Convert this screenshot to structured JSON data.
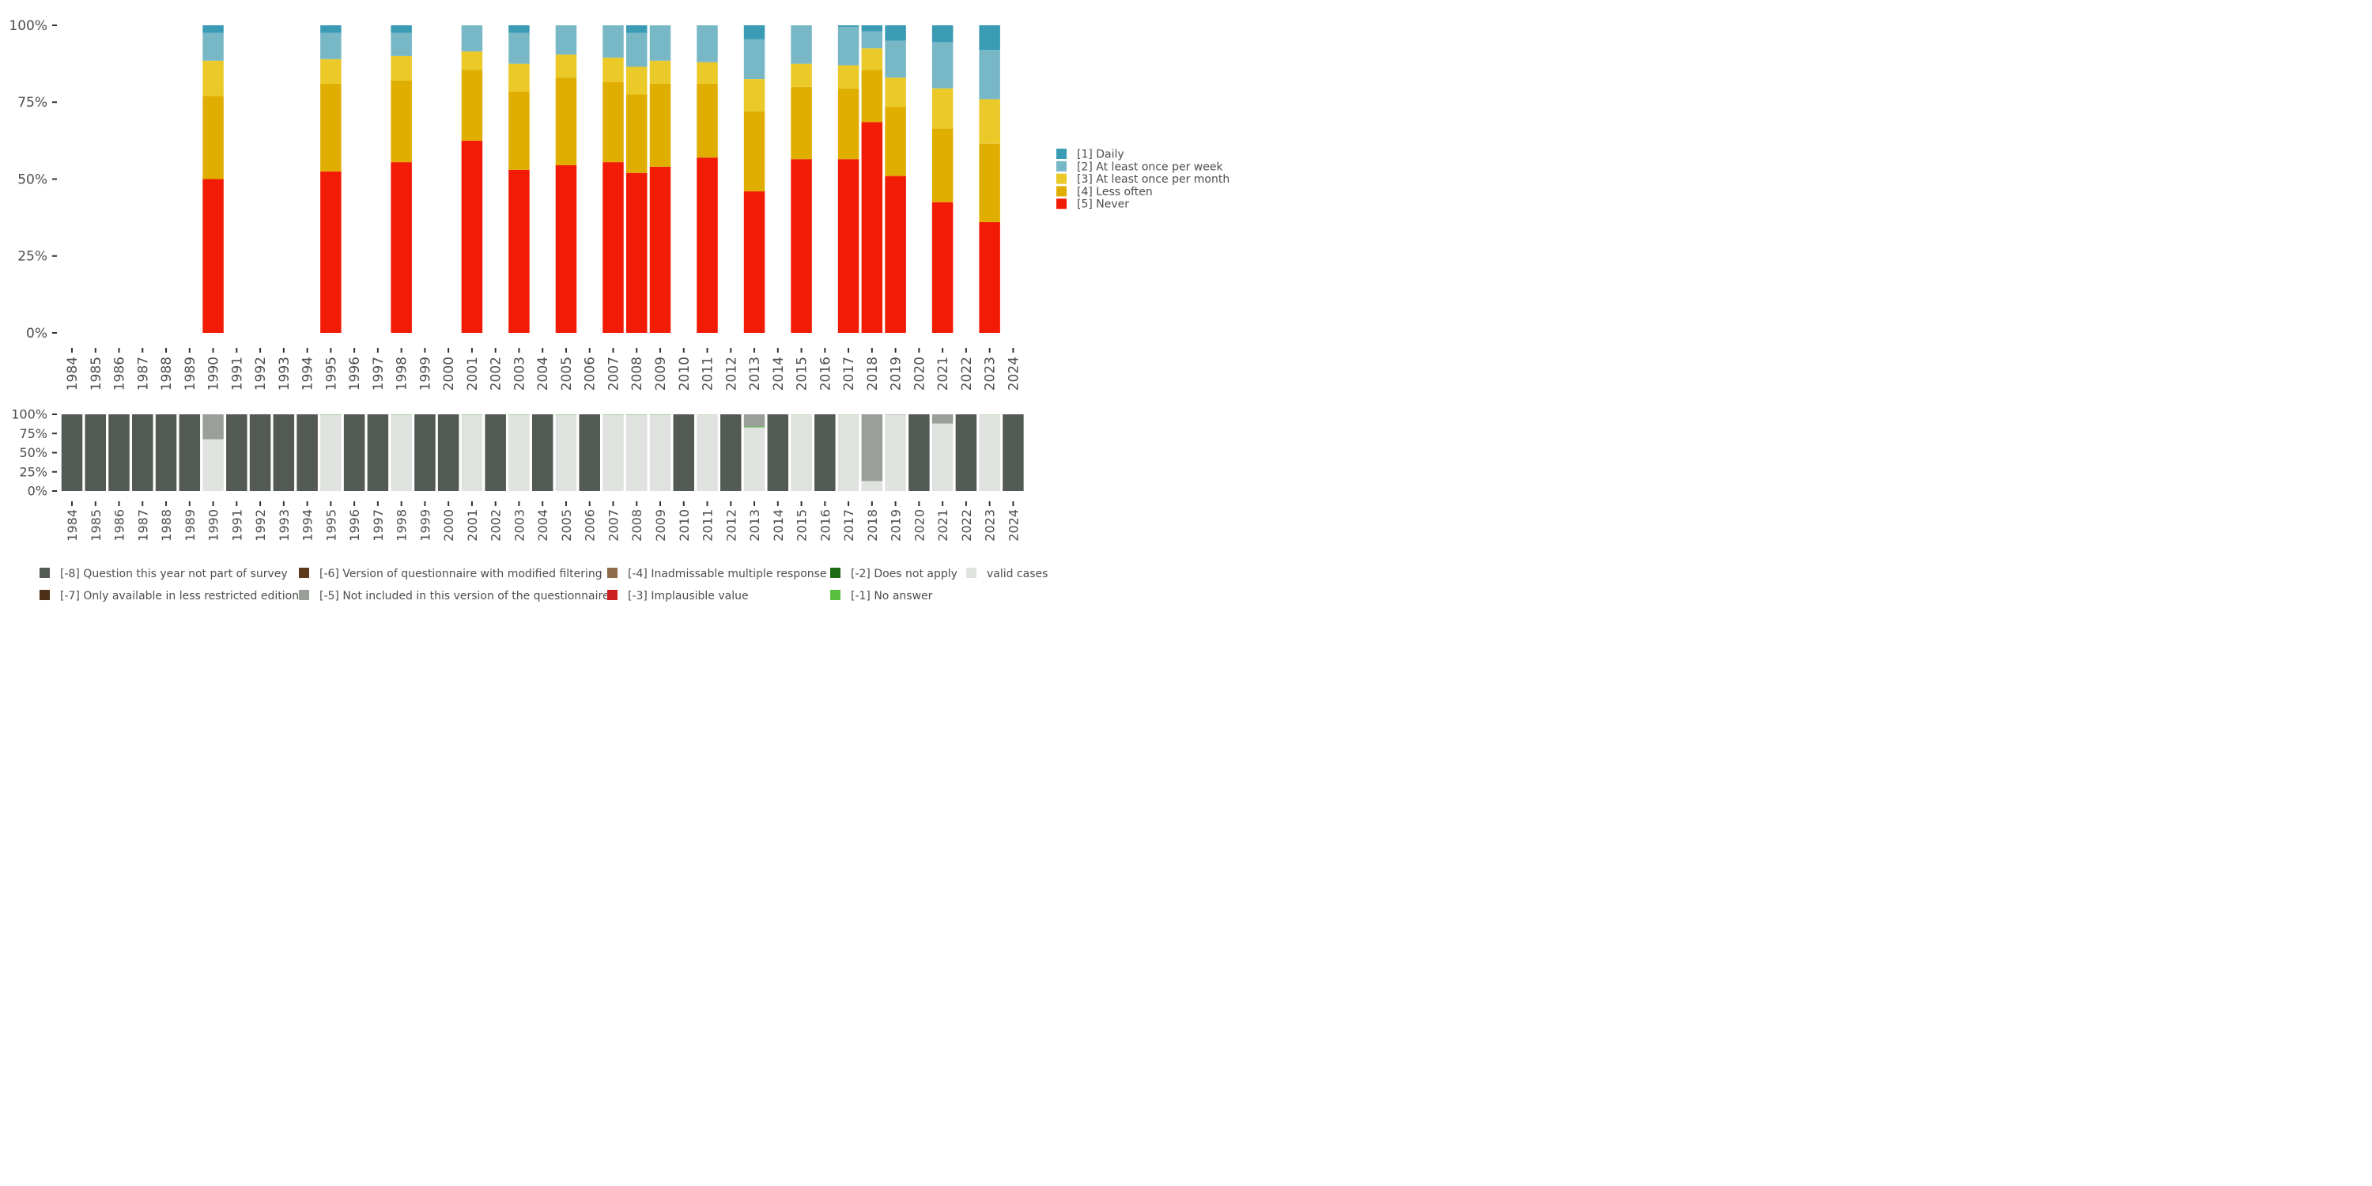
{
  "chart_data": [
    {
      "type": "bar",
      "stacked": true,
      "title": "",
      "xlabel": "",
      "ylabel": "",
      "ylim": [
        0,
        100
      ],
      "y_tick_labels": [
        "0%",
        "25%",
        "50%",
        "75%",
        "100%"
      ],
      "categories": [
        "1984",
        "1985",
        "1986",
        "1987",
        "1988",
        "1989",
        "1990",
        "1991",
        "1992",
        "1993",
        "1994",
        "1995",
        "1996",
        "1997",
        "1998",
        "1999",
        "2000",
        "2001",
        "2002",
        "2003",
        "2004",
        "2005",
        "2006",
        "2007",
        "2008",
        "2009",
        "2010",
        "2011",
        "2012",
        "2013",
        "2014",
        "2015",
        "2016",
        "2017",
        "2018",
        "2019",
        "2020",
        "2021",
        "2022",
        "2023",
        "2024"
      ],
      "legend_position": "right",
      "grid": false,
      "series": [
        {
          "name": "[5] Never",
          "color": "#f21b05",
          "values": [
            null,
            null,
            null,
            null,
            null,
            null,
            50,
            null,
            null,
            null,
            null,
            52.5,
            null,
            null,
            55.5,
            null,
            null,
            62.5,
            null,
            53,
            null,
            54.5,
            null,
            55.5,
            52,
            54,
            null,
            57,
            null,
            46,
            null,
            56.5,
            null,
            56.5,
            68.5,
            51,
            null,
            42.5,
            null,
            36,
            null
          ]
        },
        {
          "name": "[4] Less often",
          "color": "#e0ae00",
          "values": [
            null,
            null,
            null,
            null,
            null,
            null,
            27,
            null,
            null,
            null,
            null,
            28.5,
            null,
            null,
            26.5,
            null,
            null,
            23,
            null,
            25.5,
            null,
            28.5,
            null,
            26,
            25.5,
            27,
            null,
            24,
            null,
            26,
            null,
            23.5,
            null,
            23,
            17,
            22.5,
            null,
            24,
            null,
            25.5,
            null
          ]
        },
        {
          "name": "[3] At least once per month",
          "color": "#ebc928",
          "values": [
            null,
            null,
            null,
            null,
            null,
            null,
            11.5,
            null,
            null,
            null,
            null,
            8,
            null,
            null,
            8,
            null,
            null,
            6,
            null,
            9,
            null,
            7.5,
            null,
            8,
            9,
            7.5,
            null,
            7,
            null,
            10.5,
            null,
            7.5,
            null,
            7.5,
            7,
            9.5,
            null,
            13,
            null,
            14.5,
            null
          ]
        },
        {
          "name": "[2] At least once per week",
          "color": "#78b8c6",
          "values": [
            null,
            null,
            null,
            null,
            null,
            null,
            9,
            null,
            null,
            null,
            null,
            8.5,
            null,
            null,
            7.5,
            null,
            null,
            8.5,
            null,
            10,
            null,
            9.5,
            null,
            10.5,
            11,
            11.5,
            null,
            12,
            null,
            13,
            null,
            12.5,
            null,
            12.5,
            5.5,
            12,
            null,
            15,
            null,
            16,
            null
          ]
        },
        {
          "name": "[1] Daily",
          "color": "#3a9bb4",
          "values": [
            null,
            null,
            null,
            null,
            null,
            null,
            2.5,
            null,
            null,
            null,
            null,
            2.5,
            null,
            null,
            2.5,
            null,
            null,
            0,
            null,
            2.5,
            null,
            0,
            null,
            0,
            2.5,
            0,
            null,
            0,
            null,
            4.5,
            null,
            0,
            null,
            0.5,
            2,
            5,
            null,
            5.5,
            null,
            8,
            null
          ]
        }
      ]
    },
    {
      "type": "bar",
      "stacked": true,
      "title": "",
      "xlabel": "",
      "ylabel": "",
      "ylim": [
        0,
        100
      ],
      "y_tick_labels": [
        "0%",
        "25%",
        "50%",
        "75%",
        "100%"
      ],
      "categories": [
        "1984",
        "1985",
        "1986",
        "1987",
        "1988",
        "1989",
        "1990",
        "1991",
        "1992",
        "1993",
        "1994",
        "1995",
        "1996",
        "1997",
        "1998",
        "1999",
        "2000",
        "2001",
        "2002",
        "2003",
        "2004",
        "2005",
        "2006",
        "2007",
        "2008",
        "2009",
        "2010",
        "2011",
        "2012",
        "2013",
        "2014",
        "2015",
        "2016",
        "2017",
        "2018",
        "2019",
        "2020",
        "2021",
        "2022",
        "2023",
        "2024"
      ],
      "legend_position": "bottom",
      "grid": false,
      "series": [
        {
          "name": "valid cases",
          "color": "#dfe2df",
          "values": [
            0,
            0,
            0,
            0,
            0,
            0,
            67.5,
            0,
            0,
            0,
            0,
            99.5,
            0,
            0,
            99.5,
            0,
            0,
            99.5,
            0,
            99.5,
            0,
            99.5,
            0,
            99.5,
            99.5,
            99.5,
            0,
            99.8,
            0,
            83,
            0,
            99.8,
            0,
            99.8,
            13,
            99.5,
            0,
            88,
            0,
            99.8,
            0
          ]
        },
        {
          "name": "[-1] No answer",
          "color": "#58c040",
          "values": [
            0,
            0,
            0,
            0,
            0,
            0,
            0,
            0,
            0,
            0,
            0,
            0.5,
            0,
            0,
            0.5,
            0,
            0,
            0.5,
            0,
            0.5,
            0,
            0.5,
            0,
            0.5,
            0.5,
            0.5,
            0,
            0.2,
            0,
            1,
            0,
            0.2,
            0,
            0.2,
            0,
            0,
            0,
            0,
            0,
            0.2,
            0
          ]
        },
        {
          "name": "[-2] Does not apply",
          "color": "#1c6b14",
          "values": [
            0,
            0,
            0,
            0,
            0,
            0,
            0,
            0,
            0,
            0,
            0,
            0,
            0,
            0,
            0,
            0,
            0,
            0,
            0,
            0,
            0,
            0,
            0,
            0,
            0,
            0,
            0,
            0,
            0,
            0,
            0,
            0,
            0,
            0,
            0,
            0,
            0,
            0,
            0,
            0,
            0
          ]
        },
        {
          "name": "[-3] Implausible value",
          "color": "#cc2020",
          "values": [
            0,
            0,
            0,
            0,
            0,
            0,
            0,
            0,
            0,
            0,
            0,
            0,
            0,
            0,
            0,
            0,
            0,
            0,
            0,
            0,
            0,
            0,
            0,
            0,
            0,
            0,
            0,
            0,
            0,
            0,
            0,
            0,
            0,
            0,
            0,
            0,
            0,
            0,
            0,
            0,
            0
          ]
        },
        {
          "name": "[-4] Inadmissable multiple response",
          "color": "#8f6b4a",
          "values": [
            0,
            0,
            0,
            0,
            0,
            0,
            0,
            0,
            0,
            0,
            0,
            0,
            0,
            0,
            0,
            0,
            0,
            0,
            0,
            0,
            0,
            0,
            0,
            0,
            0,
            0,
            0,
            0,
            0,
            0,
            0,
            0,
            0,
            0,
            0,
            0,
            0,
            0,
            0,
            0,
            0
          ]
        },
        {
          "name": "[-5] Not included in this version of the questionnaire",
          "color": "#9a9f99",
          "values": [
            0,
            0,
            0,
            0,
            0,
            0,
            32.5,
            0,
            0,
            0,
            0,
            0,
            0,
            0,
            0,
            0,
            0,
            0,
            0,
            0,
            0,
            0,
            0,
            0,
            0,
            0,
            0,
            0,
            0,
            16,
            0,
            0,
            0,
            0,
            87,
            0.5,
            0,
            12,
            0,
            0,
            0
          ]
        },
        {
          "name": "[-6] Version of questionnaire with modified filtering",
          "color": "#5c3a1a",
          "values": [
            0,
            0,
            0,
            0,
            0,
            0,
            0,
            0,
            0,
            0,
            0,
            0,
            0,
            0,
            0,
            0,
            0,
            0,
            0,
            0,
            0,
            0,
            0,
            0,
            0,
            0,
            0,
            0,
            0,
            0,
            0,
            0,
            0,
            0,
            0,
            0,
            0,
            0,
            0,
            0,
            0
          ]
        },
        {
          "name": "[-7] Only available in less restricted edition",
          "color": "#4b2e16",
          "values": [
            0,
            0,
            0,
            0,
            0,
            0,
            0,
            0,
            0,
            0,
            0,
            0,
            0,
            0,
            0,
            0,
            0,
            0,
            0,
            0,
            0,
            0,
            0,
            0,
            0,
            0,
            0,
            0,
            0,
            0,
            0,
            0,
            0,
            0,
            0,
            0,
            0,
            0,
            0,
            0,
            0
          ]
        },
        {
          "name": "[-8] Question this year not part of survey",
          "color": "#525a53",
          "values": [
            100,
            100,
            100,
            100,
            100,
            100,
            0,
            100,
            100,
            100,
            100,
            0,
            100,
            100,
            0,
            100,
            100,
            0,
            100,
            0,
            100,
            0,
            100,
            0,
            0,
            0,
            100,
            0,
            100,
            0,
            100,
            0,
            100,
            0,
            0,
            0,
            100,
            0,
            100,
            0,
            100
          ]
        }
      ]
    }
  ]
}
